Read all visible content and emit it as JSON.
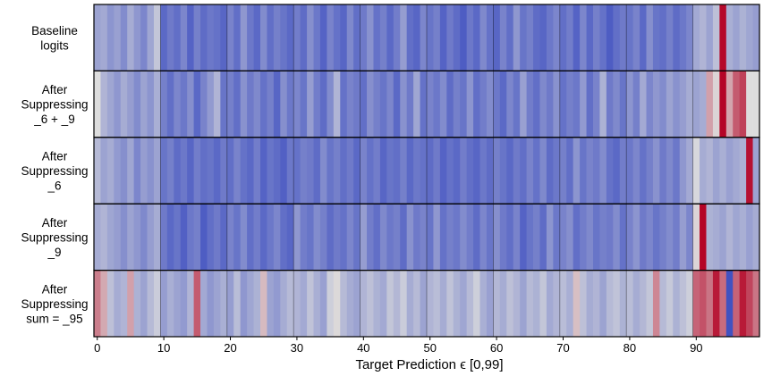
{
  "chart_data": {
    "type": "heatmap",
    "title": "",
    "xlabel": "Target Prediction  ϵ  [0,99]",
    "ylabel": "",
    "x_range": [
      0,
      99
    ],
    "x_ticks": [
      "0",
      "10",
      "20",
      "30",
      "40",
      "50",
      "60",
      "70",
      "80",
      "90"
    ],
    "x_tick_values": [
      0,
      10,
      20,
      30,
      40,
      50,
      60,
      70,
      80,
      90
    ],
    "colormap": "coolwarm",
    "color_low": "#3b4cc0",
    "color_mid": "#dddddd",
    "color_high": "#b40426",
    "vertical_gridlines": [
      10,
      20,
      30,
      40,
      50,
      60,
      70,
      80,
      90
    ],
    "rows": [
      {
        "label": [
          "Baseline",
          "logits"
        ],
        "values": [
          0.3,
          0.32,
          0.25,
          0.29,
          0.22,
          0.33,
          0.26,
          0.2,
          0.31,
          0.42,
          0.1,
          0.16,
          0.12,
          0.2,
          0.08,
          0.18,
          0.11,
          0.15,
          0.13,
          0.09,
          0.19,
          0.12,
          0.26,
          0.15,
          0.1,
          0.22,
          0.12,
          0.18,
          0.14,
          0.1,
          0.17,
          0.11,
          0.23,
          0.15,
          0.08,
          0.19,
          0.13,
          0.09,
          0.21,
          0.12,
          0.16,
          0.24,
          0.13,
          0.18,
          0.1,
          0.17,
          0.28,
          0.12,
          0.09,
          0.2,
          0.14,
          0.18,
          0.08,
          0.16,
          0.11,
          0.06,
          0.15,
          0.1,
          0.21,
          0.13,
          0.09,
          0.19,
          0.12,
          0.26,
          0.14,
          0.18,
          0.11,
          0.09,
          0.15,
          0.2,
          0.12,
          0.17,
          0.08,
          0.2,
          0.1,
          0.18,
          0.13,
          0.06,
          0.12,
          0.16,
          0.14,
          0.19,
          0.1,
          0.23,
          0.14,
          0.12,
          0.18,
          0.11,
          0.15,
          0.2,
          0.32,
          0.36,
          0.3,
          0.4,
          0.99,
          0.34,
          0.3,
          0.35,
          0.31,
          0.28
        ]
      },
      {
        "label": [
          "After",
          "Suppressing",
          "_6 + _9"
        ],
        "values": [
          0.5,
          0.36,
          0.31,
          0.26,
          0.33,
          0.28,
          0.22,
          0.3,
          0.25,
          0.34,
          0.18,
          0.12,
          0.2,
          0.15,
          0.23,
          0.1,
          0.19,
          0.27,
          0.36,
          0.14,
          0.18,
          0.12,
          0.24,
          0.16,
          0.21,
          0.13,
          0.18,
          0.09,
          0.23,
          0.15,
          0.2,
          0.14,
          0.28,
          0.17,
          0.11,
          0.22,
          0.36,
          0.13,
          0.19,
          0.16,
          0.12,
          0.23,
          0.18,
          0.14,
          0.2,
          0.1,
          0.24,
          0.16,
          0.31,
          0.13,
          0.19,
          0.15,
          0.22,
          0.11,
          0.18,
          0.14,
          0.25,
          0.12,
          0.17,
          0.22,
          0.15,
          0.1,
          0.2,
          0.14,
          0.29,
          0.17,
          0.12,
          0.21,
          0.16,
          0.24,
          0.13,
          0.18,
          0.15,
          0.27,
          0.12,
          0.19,
          0.35,
          0.16,
          0.21,
          0.14,
          0.25,
          0.18,
          0.32,
          0.2,
          0.26,
          0.22,
          0.3,
          0.24,
          0.28,
          0.33,
          0.3,
          0.33,
          0.64,
          0.52,
          1.0,
          0.63,
          0.8,
          0.86,
          0.5,
          0.5
        ]
      },
      {
        "label": [
          "After",
          "Suppressing",
          "_6"
        ],
        "values": [
          0.38,
          0.3,
          0.33,
          0.27,
          0.23,
          0.31,
          0.2,
          0.28,
          0.24,
          0.3,
          0.14,
          0.18,
          0.11,
          0.15,
          0.09,
          0.17,
          0.12,
          0.14,
          0.1,
          0.16,
          0.12,
          0.19,
          0.13,
          0.1,
          0.17,
          0.08,
          0.14,
          0.11,
          0.07,
          0.15,
          0.13,
          0.18,
          0.16,
          0.11,
          0.22,
          0.14,
          0.18,
          0.12,
          0.16,
          0.1,
          0.19,
          0.13,
          0.17,
          0.09,
          0.14,
          0.12,
          0.18,
          0.1,
          0.15,
          0.13,
          0.11,
          0.16,
          0.08,
          0.13,
          0.1,
          0.17,
          0.12,
          0.09,
          0.15,
          0.11,
          0.18,
          0.14,
          0.1,
          0.16,
          0.12,
          0.19,
          0.13,
          0.21,
          0.11,
          0.15,
          0.18,
          0.12,
          0.25,
          0.14,
          0.19,
          0.16,
          0.22,
          0.13,
          0.1,
          0.17,
          0.15,
          0.2,
          0.13,
          0.18,
          0.24,
          0.16,
          0.21,
          0.15,
          0.26,
          0.32,
          0.48,
          0.33,
          0.36,
          0.3,
          0.34,
          0.29,
          0.32,
          0.35,
          0.97,
          0.3
        ]
      },
      {
        "label": [
          "After",
          "Suppressing",
          "_9"
        ],
        "values": [
          0.33,
          0.36,
          0.31,
          0.28,
          0.23,
          0.3,
          0.26,
          0.21,
          0.28,
          0.33,
          0.16,
          0.1,
          0.14,
          0.07,
          0.15,
          0.18,
          0.06,
          0.12,
          0.16,
          0.1,
          0.19,
          0.14,
          0.22,
          0.12,
          0.17,
          0.1,
          0.15,
          0.2,
          0.12,
          0.09,
          0.26,
          0.17,
          0.14,
          0.22,
          0.18,
          0.11,
          0.16,
          0.13,
          0.2,
          0.14,
          0.28,
          0.17,
          0.12,
          0.21,
          0.15,
          0.18,
          0.11,
          0.24,
          0.16,
          0.19,
          0.14,
          0.26,
          0.13,
          0.18,
          0.15,
          0.22,
          0.17,
          0.11,
          0.2,
          0.14,
          0.23,
          0.16,
          0.12,
          0.19,
          0.08,
          0.14,
          0.18,
          0.11,
          0.25,
          0.15,
          0.19,
          0.23,
          0.12,
          0.17,
          0.21,
          0.14,
          0.18,
          0.16,
          0.22,
          0.13,
          0.19,
          0.25,
          0.16,
          0.2,
          0.14,
          0.18,
          0.22,
          0.17,
          0.28,
          0.2,
          0.52,
          1.0,
          0.35,
          0.33,
          0.3,
          0.36,
          0.31,
          0.34,
          0.29,
          0.33
        ]
      },
      {
        "label": [
          "After",
          "Suppressing",
          "sum = _95"
        ],
        "values": [
          0.72,
          0.62,
          0.4,
          0.33,
          0.36,
          0.64,
          0.35,
          0.3,
          0.38,
          0.44,
          0.28,
          0.34,
          0.3,
          0.27,
          0.36,
          0.8,
          0.32,
          0.26,
          0.3,
          0.34,
          0.28,
          0.39,
          0.26,
          0.31,
          0.35,
          0.58,
          0.3,
          0.27,
          0.33,
          0.38,
          0.36,
          0.32,
          0.41,
          0.34,
          0.29,
          0.45,
          0.51,
          0.38,
          0.33,
          0.3,
          0.36,
          0.4,
          0.35,
          0.32,
          0.42,
          0.37,
          0.44,
          0.33,
          0.38,
          0.3,
          0.36,
          0.39,
          0.33,
          0.41,
          0.35,
          0.31,
          0.38,
          0.45,
          0.34,
          0.29,
          0.37,
          0.33,
          0.4,
          0.36,
          0.3,
          0.38,
          0.35,
          0.42,
          0.32,
          0.36,
          0.39,
          0.34,
          0.57,
          0.4,
          0.33,
          0.36,
          0.3,
          0.38,
          0.41,
          0.35,
          0.39,
          0.33,
          0.37,
          0.42,
          0.7,
          0.38,
          0.43,
          0.35,
          0.4,
          0.45,
          0.78,
          0.82,
          0.74,
          0.95,
          0.76,
          0.02,
          0.78,
          0.95,
          0.85,
          0.74
        ]
      }
    ]
  }
}
